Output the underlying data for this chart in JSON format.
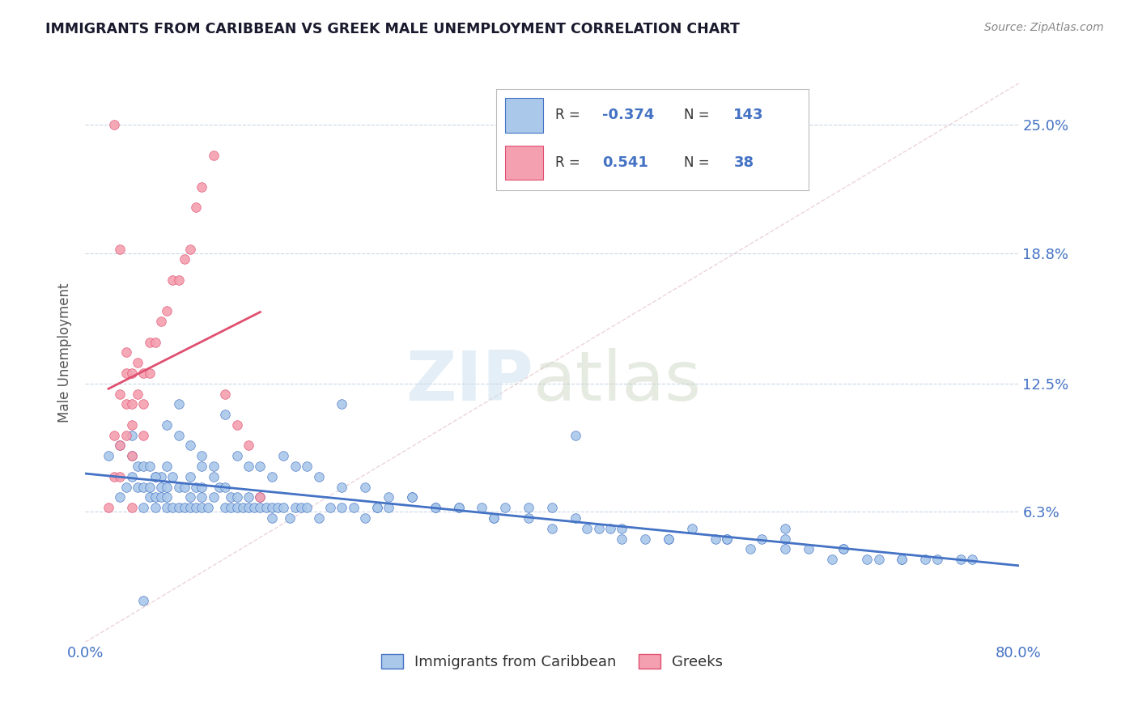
{
  "title": "IMMIGRANTS FROM CARIBBEAN VS GREEK MALE UNEMPLOYMENT CORRELATION CHART",
  "source": "Source: ZipAtlas.com",
  "ylabel": "Male Unemployment",
  "xlim": [
    0.0,
    0.8
  ],
  "ylim": [
    0.0,
    0.28
  ],
  "yticks": [
    0.063,
    0.125,
    0.188,
    0.25
  ],
  "ytick_labels": [
    "6.3%",
    "12.5%",
    "18.8%",
    "25.0%"
  ],
  "xticks": [
    0.0,
    0.1,
    0.2,
    0.3,
    0.4,
    0.5,
    0.6,
    0.7,
    0.8
  ],
  "xtick_labels": [
    "0.0%",
    "",
    "",
    "",
    "",
    "",
    "",
    "",
    "80.0%"
  ],
  "blue_R": "-0.374",
  "blue_N": "143",
  "pink_R": "0.541",
  "pink_N": "38",
  "blue_color": "#aac8ea",
  "pink_color": "#f4a0b0",
  "blue_line_color": "#4472c4",
  "pink_line_color": "#e05070",
  "axis_color": "#4472c4",
  "grid_color": "#c8d8e8",
  "title_color": "#1a1a2e",
  "background_color": "#ffffff",
  "blue_scatter_x": [
    0.02,
    0.03,
    0.035,
    0.04,
    0.04,
    0.045,
    0.045,
    0.05,
    0.05,
    0.05,
    0.055,
    0.055,
    0.055,
    0.06,
    0.06,
    0.06,
    0.065,
    0.065,
    0.065,
    0.07,
    0.07,
    0.07,
    0.07,
    0.075,
    0.075,
    0.08,
    0.08,
    0.085,
    0.085,
    0.09,
    0.09,
    0.09,
    0.095,
    0.095,
    0.1,
    0.1,
    0.1,
    0.1,
    0.105,
    0.11,
    0.11,
    0.115,
    0.12,
    0.12,
    0.125,
    0.125,
    0.13,
    0.13,
    0.135,
    0.14,
    0.14,
    0.145,
    0.15,
    0.15,
    0.155,
    0.16,
    0.16,
    0.165,
    0.17,
    0.175,
    0.18,
    0.185,
    0.19,
    0.2,
    0.21,
    0.22,
    0.23,
    0.24,
    0.25,
    0.26,
    0.28,
    0.3,
    0.32,
    0.34,
    0.36,
    0.38,
    0.4,
    0.42,
    0.44,
    0.46,
    0.48,
    0.5,
    0.52,
    0.55,
    0.58,
    0.6,
    0.62,
    0.65,
    0.68,
    0.7,
    0.72,
    0.75,
    0.04,
    0.06,
    0.08,
    0.1,
    0.12,
    0.14,
    0.16,
    0.18,
    0.2,
    0.22,
    0.24,
    0.26,
    0.28,
    0.3,
    0.32,
    0.35,
    0.38,
    0.4,
    0.43,
    0.46,
    0.5,
    0.54,
    0.57,
    0.6,
    0.64,
    0.67,
    0.7,
    0.73,
    0.76,
    0.05,
    0.08,
    0.22,
    0.42,
    0.6,
    0.03,
    0.07,
    0.09,
    0.11,
    0.13,
    0.15,
    0.17,
    0.19,
    0.25,
    0.35,
    0.45,
    0.55,
    0.65
  ],
  "blue_scatter_y": [
    0.09,
    0.07,
    0.075,
    0.08,
    0.09,
    0.075,
    0.085,
    0.065,
    0.075,
    0.085,
    0.07,
    0.075,
    0.085,
    0.065,
    0.07,
    0.08,
    0.07,
    0.075,
    0.08,
    0.065,
    0.07,
    0.075,
    0.085,
    0.065,
    0.08,
    0.065,
    0.075,
    0.065,
    0.075,
    0.065,
    0.07,
    0.08,
    0.065,
    0.075,
    0.065,
    0.07,
    0.075,
    0.085,
    0.065,
    0.07,
    0.08,
    0.075,
    0.065,
    0.075,
    0.065,
    0.07,
    0.065,
    0.07,
    0.065,
    0.065,
    0.07,
    0.065,
    0.065,
    0.07,
    0.065,
    0.06,
    0.065,
    0.065,
    0.065,
    0.06,
    0.065,
    0.065,
    0.065,
    0.06,
    0.065,
    0.065,
    0.065,
    0.06,
    0.065,
    0.065,
    0.07,
    0.065,
    0.065,
    0.065,
    0.065,
    0.065,
    0.065,
    0.06,
    0.055,
    0.055,
    0.05,
    0.05,
    0.055,
    0.05,
    0.05,
    0.05,
    0.045,
    0.045,
    0.04,
    0.04,
    0.04,
    0.04,
    0.1,
    0.08,
    0.1,
    0.09,
    0.11,
    0.085,
    0.08,
    0.085,
    0.08,
    0.075,
    0.075,
    0.07,
    0.07,
    0.065,
    0.065,
    0.06,
    0.06,
    0.055,
    0.055,
    0.05,
    0.05,
    0.05,
    0.045,
    0.045,
    0.04,
    0.04,
    0.04,
    0.04,
    0.04,
    0.02,
    0.115,
    0.115,
    0.1,
    0.055,
    0.095,
    0.105,
    0.095,
    0.085,
    0.09,
    0.085,
    0.09,
    0.085,
    0.065,
    0.06,
    0.055,
    0.05,
    0.045
  ],
  "pink_scatter_x": [
    0.02,
    0.025,
    0.025,
    0.03,
    0.03,
    0.03,
    0.035,
    0.035,
    0.035,
    0.04,
    0.04,
    0.04,
    0.04,
    0.045,
    0.045,
    0.05,
    0.05,
    0.055,
    0.055,
    0.06,
    0.065,
    0.07,
    0.075,
    0.08,
    0.085,
    0.09,
    0.095,
    0.1,
    0.11,
    0.12,
    0.13,
    0.14,
    0.15,
    0.04,
    0.025,
    0.03,
    0.035,
    0.05
  ],
  "pink_scatter_y": [
    0.065,
    0.08,
    0.1,
    0.08,
    0.095,
    0.12,
    0.1,
    0.115,
    0.13,
    0.09,
    0.105,
    0.115,
    0.13,
    0.12,
    0.135,
    0.115,
    0.13,
    0.13,
    0.145,
    0.145,
    0.155,
    0.16,
    0.175,
    0.175,
    0.185,
    0.19,
    0.21,
    0.22,
    0.235,
    0.12,
    0.105,
    0.095,
    0.07,
    0.065,
    0.25,
    0.19,
    0.14,
    0.1
  ]
}
